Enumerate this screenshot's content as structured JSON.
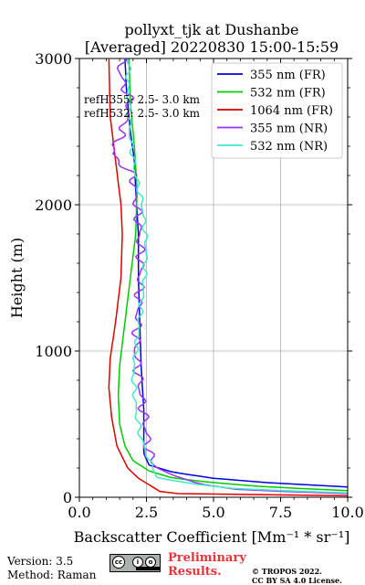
{
  "figure": {
    "title_line1": "pollyxt_tjk at Dushanbe",
    "title_line2": "[Averaged] 20220830 15:00-15:59"
  },
  "chart_data": {
    "type": "line",
    "xlabel": "Backscatter Coefficient [Mm⁻¹ * sr⁻¹]",
    "ylabel": "Height (m)",
    "xlim": [
      0,
      10
    ],
    "ylim": [
      0,
      3000
    ],
    "x_tick_labels": [
      "0.0",
      "2.5",
      "5.0",
      "7.5",
      "10.0"
    ],
    "y_tick_labels": [
      "0",
      "1000",
      "2000",
      "3000"
    ],
    "grid": true,
    "legend_position": "top-right",
    "annotations": [
      "refH355:  2.5- 3.0 km",
      "refH532:  2.5- 3.0 km"
    ],
    "series": [
      {
        "name": "355 nm (FR)",
        "color": "#0000dd",
        "jitter": 0,
        "points": [
          [
            10.0,
            70
          ],
          [
            7,
            100
          ],
          [
            5,
            130
          ],
          [
            3.5,
            170
          ],
          [
            2.6,
            220
          ],
          [
            2.4,
            300
          ],
          [
            2.4,
            600
          ],
          [
            2.3,
            900
          ],
          [
            2.25,
            1200
          ],
          [
            2.2,
            1500
          ],
          [
            2.2,
            1800
          ],
          [
            2.1,
            2100
          ],
          [
            2.05,
            2300
          ],
          [
            1.9,
            2500
          ],
          [
            1.75,
            2800
          ],
          [
            1.7,
            3000
          ]
        ]
      },
      {
        "name": "532 nm (FR)",
        "color": "#00cc00",
        "jitter": 0,
        "points": [
          [
            10.0,
            45
          ],
          [
            7,
            70
          ],
          [
            5,
            100
          ],
          [
            3.5,
            130
          ],
          [
            2.6,
            180
          ],
          [
            2,
            250
          ],
          [
            1.7,
            350
          ],
          [
            1.5,
            500
          ],
          [
            1.45,
            700
          ],
          [
            1.5,
            900
          ],
          [
            1.7,
            1200
          ],
          [
            1.9,
            1500
          ],
          [
            2.1,
            1800
          ],
          [
            2.15,
            2100
          ],
          [
            2.05,
            2400
          ],
          [
            1.9,
            2700
          ],
          [
            1.85,
            3000
          ]
        ]
      },
      {
        "name": "1064 nm (FR)",
        "color": "#dd0000",
        "jitter": 0,
        "points": [
          [
            10.0,
            10
          ],
          [
            6,
            12
          ],
          [
            4,
            18
          ],
          [
            3,
            40
          ],
          [
            2.2,
            130
          ],
          [
            1.8,
            200
          ],
          [
            1.4,
            350
          ],
          [
            1.2,
            550
          ],
          [
            1.1,
            750
          ],
          [
            1.15,
            950
          ],
          [
            1.35,
            1200
          ],
          [
            1.55,
            1500
          ],
          [
            1.6,
            1800
          ],
          [
            1.55,
            2000
          ],
          [
            1.35,
            2300
          ],
          [
            1.15,
            2600
          ],
          [
            1.1,
            3000
          ]
        ]
      },
      {
        "name": "355 nm (NR)",
        "color": "#9932ff",
        "jitter": 0.12,
        "points": [
          [
            10.0,
            25
          ],
          [
            6,
            50
          ],
          [
            4.5,
            90
          ],
          [
            3.5,
            150
          ],
          [
            2.9,
            200
          ],
          [
            2.6,
            300
          ],
          [
            2.5,
            450
          ],
          [
            2.3,
            700
          ],
          [
            2.1,
            1000
          ],
          [
            2.2,
            1300
          ],
          [
            2.3,
            1600
          ],
          [
            2.2,
            1900
          ],
          [
            2.0,
            2200
          ],
          [
            1.2,
            2350
          ],
          [
            1.6,
            2500
          ],
          [
            1.9,
            2700
          ],
          [
            1.5,
            2900
          ],
          [
            1.6,
            3000
          ]
        ]
      },
      {
        "name": "532 nm (NR)",
        "color": "#40e8c8",
        "jitter": 0.06,
        "points": [
          [
            10.0,
            30
          ],
          [
            6,
            55
          ],
          [
            4.5,
            85
          ],
          [
            3.5,
            115
          ],
          [
            2.9,
            130
          ],
          [
            2.6,
            250
          ],
          [
            2.3,
            400
          ],
          [
            2.1,
            600
          ],
          [
            2.0,
            850
          ],
          [
            2.2,
            1150
          ],
          [
            2.4,
            1450
          ],
          [
            2.5,
            1700
          ],
          [
            2.35,
            2000
          ],
          [
            2.1,
            2200
          ],
          [
            1.9,
            2450
          ],
          [
            1.8,
            2800
          ],
          [
            1.85,
            3000
          ]
        ]
      }
    ]
  },
  "footer": {
    "version": "Version: 3.5",
    "method": "Method: Raman",
    "prelim_line1": "Preliminary",
    "prelim_line2": "Results.",
    "copyright_line1": "© TROPOS 2022.",
    "copyright_line2": "CC BY SA 4.0 License.",
    "cc_logo_name": "cc-by-sa-logo"
  }
}
